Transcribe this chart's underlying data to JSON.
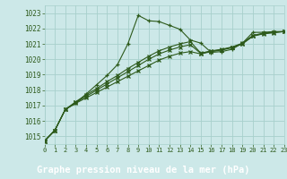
{
  "title": "Graphe pression niveau de la mer (hPa)",
  "bg_color": "#cce8e8",
  "plot_bg": "#cce8e8",
  "label_bg": "#2d6e2d",
  "label_fg": "#ffffff",
  "grid_color": "#a8d0cc",
  "line_color": "#2d5a1b",
  "xlim": [
    0,
    23
  ],
  "ylim": [
    1014.5,
    1023.5
  ],
  "yticks": [
    1015,
    1016,
    1017,
    1018,
    1019,
    1020,
    1021,
    1022,
    1023
  ],
  "xtick_labels": [
    "0",
    "1",
    "2",
    "3",
    "4",
    "5",
    "6",
    "7",
    "8",
    "9",
    "10",
    "11",
    "12",
    "13",
    "14",
    "15",
    "16",
    "17",
    "18",
    "19",
    "20",
    "21",
    "22",
    "23"
  ],
  "series1": [
    [
      0,
      1014.7
    ],
    [
      1,
      1015.4
    ],
    [
      2,
      1016.75
    ],
    [
      3,
      1017.15
    ],
    [
      4,
      1017.75
    ],
    [
      5,
      1018.35
    ],
    [
      6,
      1018.95
    ],
    [
      7,
      1019.65
    ],
    [
      8,
      1021.0
    ],
    [
      9,
      1022.85
    ],
    [
      10,
      1022.5
    ],
    [
      11,
      1022.45
    ],
    [
      12,
      1022.2
    ],
    [
      13,
      1021.95
    ],
    [
      14,
      1021.25
    ],
    [
      15,
      1021.05
    ],
    [
      16,
      1020.45
    ],
    [
      17,
      1020.5
    ],
    [
      18,
      1020.65
    ],
    [
      19,
      1021.05
    ],
    [
      20,
      1021.75
    ],
    [
      21,
      1021.75
    ],
    [
      22,
      1021.8
    ],
    [
      23,
      1021.8
    ]
  ],
  "series2": [
    [
      0,
      1014.7
    ],
    [
      1,
      1015.4
    ],
    [
      2,
      1016.75
    ],
    [
      3,
      1017.15
    ],
    [
      4,
      1017.5
    ],
    [
      5,
      1017.85
    ],
    [
      6,
      1018.2
    ],
    [
      7,
      1018.55
    ],
    [
      8,
      1018.9
    ],
    [
      9,
      1019.25
    ],
    [
      10,
      1019.6
    ],
    [
      11,
      1019.95
    ],
    [
      12,
      1020.2
    ],
    [
      13,
      1020.4
    ],
    [
      14,
      1020.5
    ],
    [
      15,
      1020.35
    ],
    [
      16,
      1020.5
    ],
    [
      17,
      1020.6
    ],
    [
      18,
      1020.75
    ],
    [
      19,
      1021.0
    ],
    [
      20,
      1021.5
    ],
    [
      21,
      1021.65
    ],
    [
      22,
      1021.72
    ],
    [
      23,
      1021.8
    ]
  ],
  "series3": [
    [
      0,
      1014.7
    ],
    [
      1,
      1015.4
    ],
    [
      2,
      1016.75
    ],
    [
      3,
      1017.2
    ],
    [
      4,
      1017.6
    ],
    [
      5,
      1018.0
    ],
    [
      6,
      1018.4
    ],
    [
      7,
      1018.8
    ],
    [
      8,
      1019.2
    ],
    [
      9,
      1019.6
    ],
    [
      10,
      1020.0
    ],
    [
      11,
      1020.35
    ],
    [
      12,
      1020.6
    ],
    [
      13,
      1020.8
    ],
    [
      14,
      1020.95
    ],
    [
      15,
      1020.38
    ],
    [
      16,
      1020.52
    ],
    [
      17,
      1020.62
    ],
    [
      18,
      1020.78
    ],
    [
      19,
      1021.02
    ],
    [
      20,
      1021.52
    ],
    [
      21,
      1021.68
    ],
    [
      22,
      1021.76
    ],
    [
      23,
      1021.8
    ]
  ],
  "series4": [
    [
      0,
      1014.7
    ],
    [
      1,
      1015.4
    ],
    [
      2,
      1016.75
    ],
    [
      3,
      1017.25
    ],
    [
      4,
      1017.7
    ],
    [
      5,
      1018.1
    ],
    [
      6,
      1018.55
    ],
    [
      7,
      1018.95
    ],
    [
      8,
      1019.4
    ],
    [
      9,
      1019.8
    ],
    [
      10,
      1020.2
    ],
    [
      11,
      1020.55
    ],
    [
      12,
      1020.8
    ],
    [
      13,
      1021.0
    ],
    [
      14,
      1021.15
    ],
    [
      15,
      1020.4
    ],
    [
      16,
      1020.55
    ],
    [
      17,
      1020.65
    ],
    [
      18,
      1020.8
    ],
    [
      19,
      1021.05
    ],
    [
      20,
      1021.55
    ],
    [
      21,
      1021.7
    ],
    [
      22,
      1021.78
    ],
    [
      23,
      1021.8
    ]
  ]
}
